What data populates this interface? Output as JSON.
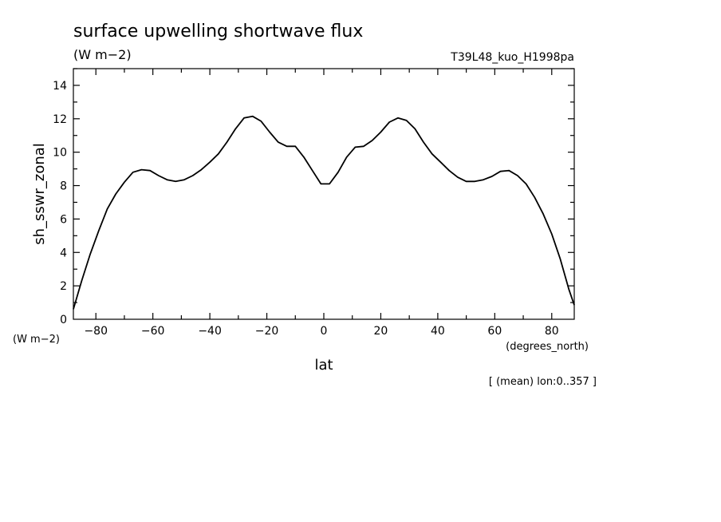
{
  "chart_data": {
    "type": "line",
    "title": "surface upwelling shortwave flux",
    "title_units": "(W m−2)",
    "dataset_label": "T39L48_kuo_H1998pa",
    "ylabel": "sh_sswr_zonal",
    "ylabel_units": "(W m−2)",
    "xlabel": "lat",
    "xlabel_units": "(degrees_north)",
    "footnote": "[ (mean) lon:0..357 ]",
    "xlim": [
      -87.9,
      87.9
    ],
    "ylim": [
      0,
      15
    ],
    "x_ticks": [
      -80,
      -60,
      -40,
      -20,
      0,
      20,
      40,
      60,
      80
    ],
    "x_tick_labels": [
      "−80",
      "−60",
      "−40",
      "−20",
      "0",
      "20",
      "40",
      "60",
      "80"
    ],
    "y_ticks": [
      0,
      2,
      4,
      6,
      8,
      10,
      12,
      14
    ],
    "y_tick_labels": [
      "0",
      "2",
      "4",
      "6",
      "8",
      "10",
      "12",
      "14"
    ],
    "grid": false,
    "series": [
      {
        "x": [
          -87.9,
          -85,
          -82,
          -79,
          -76,
          -73,
          -70,
          -67,
          -64,
          -61,
          -58,
          -55,
          -52,
          -49,
          -46,
          -43,
          -40,
          -37,
          -34,
          -31,
          -28,
          -25,
          -22,
          -19,
          -16,
          -13,
          -10,
          -7,
          -4,
          -1,
          2,
          5,
          8,
          11,
          14,
          17,
          20,
          23,
          26,
          29,
          32,
          35,
          38,
          41,
          44,
          47,
          50,
          53,
          56,
          59,
          62,
          65,
          68,
          71,
          74,
          77,
          80,
          83,
          86,
          87.9
        ],
        "y": [
          0.6,
          2.3,
          3.9,
          5.3,
          6.6,
          7.5,
          8.2,
          8.8,
          8.95,
          8.9,
          8.6,
          8.35,
          8.25,
          8.35,
          8.6,
          8.95,
          9.4,
          9.9,
          10.6,
          11.4,
          12.05,
          12.15,
          11.85,
          11.2,
          10.6,
          10.35,
          10.35,
          9.7,
          8.9,
          8.1,
          8.1,
          8.8,
          9.7,
          10.3,
          10.35,
          10.7,
          11.2,
          11.8,
          12.05,
          11.9,
          11.4,
          10.6,
          9.9,
          9.4,
          8.9,
          8.5,
          8.25,
          8.25,
          8.35,
          8.55,
          8.85,
          8.9,
          8.6,
          8.1,
          7.3,
          6.3,
          5.1,
          3.6,
          1.8,
          0.85
        ]
      }
    ]
  }
}
